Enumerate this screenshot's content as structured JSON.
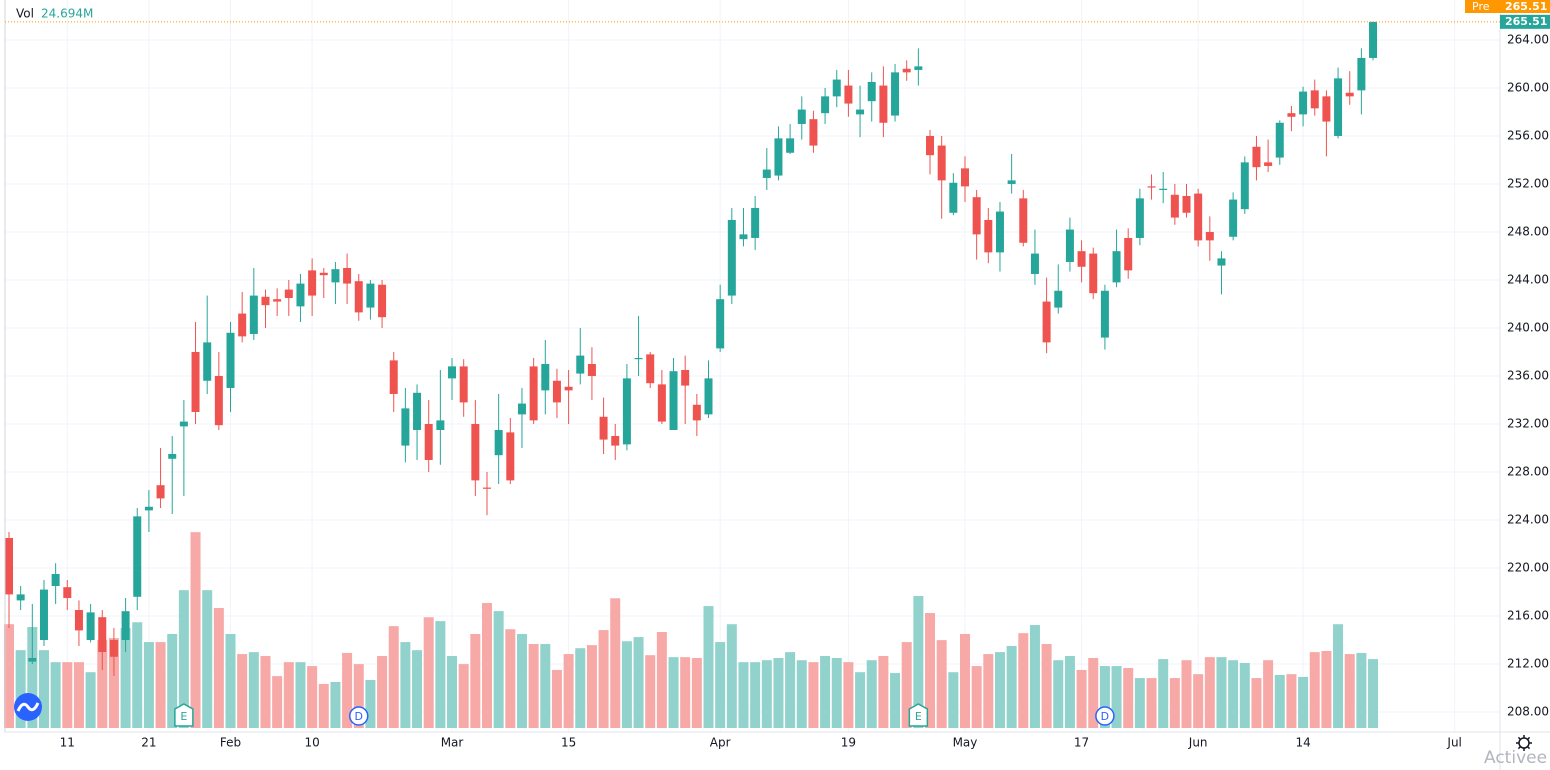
{
  "chart_data": {
    "type": "candlestick",
    "volume_legend": {
      "title": "Vol",
      "value": 24.694,
      "value_label": "24.694M"
    },
    "pre_market": {
      "label": "Pre",
      "value": 265.51
    },
    "last_price": 265.51,
    "watermark": "Activee",
    "open": [
      222.5,
      217.3,
      212.2,
      214,
      218.5,
      218.4,
      216.5,
      214,
      215.9,
      214,
      214,
      217.6,
      224.8,
      226.9,
      229.1,
      231.8,
      238,
      235.6,
      236,
      235,
      241.2,
      239.5,
      242.6,
      242.4,
      243.2,
      241.8,
      244.8,
      244.6,
      243.8,
      245,
      243.9,
      241.7,
      243.6,
      237.3,
      230.2,
      231.5,
      232,
      231.5,
      235.8,
      236.8,
      232,
      226.7,
      229.4,
      231.3,
      232.8,
      236.8,
      234.8,
      235.6,
      235.1,
      236.2,
      237,
      232.6,
      231,
      230.3,
      237.4,
      237.8,
      235.3,
      231.5,
      236.5,
      233.6,
      232.8,
      238.3,
      242.7,
      247.4,
      247.5,
      252.5,
      252.7,
      254.6,
      257,
      257.4,
      257.9,
      259.3,
      260.2,
      257.8,
      258.9,
      260.2,
      257.7,
      261.6,
      261.5,
      256,
      255.2,
      249.6,
      253.3,
      250.9,
      249,
      246.3,
      252,
      250.8,
      244.5,
      242.2,
      241.7,
      245.5,
      246.4,
      246.2,
      239.2,
      243.8,
      247.5,
      247.5,
      251.8,
      251.5,
      251.1,
      251,
      251.2,
      248,
      245.2,
      247.6,
      249.9,
      255.1,
      253.8,
      254.2,
      257.9,
      257.8,
      259.8,
      259.3,
      256,
      259.6,
      259.8,
      262.5
    ],
    "high": [
      223,
      218.5,
      217,
      219,
      220.4,
      219,
      217.3,
      217,
      216.5,
      215,
      217.5,
      225,
      226.5,
      230,
      231,
      234,
      240.5,
      242.7,
      238,
      240.5,
      243,
      245,
      243.2,
      243.3,
      244,
      244.5,
      245.8,
      245,
      245.5,
      246.2,
      244.5,
      244,
      244,
      238,
      235,
      235.3,
      234,
      236.5,
      237.5,
      237.4,
      234,
      228,
      234.5,
      232.5,
      235,
      237.5,
      239,
      236.6,
      236.5,
      240,
      238.4,
      234.2,
      232,
      237,
      241,
      238,
      236.5,
      237.5,
      237.7,
      234.5,
      237.3,
      243.6,
      250,
      250,
      251,
      255,
      256.8,
      257,
      259.3,
      258.1,
      260,
      261.5,
      261.5,
      260.2,
      261.3,
      261.8,
      262,
      262.3,
      263.3,
      256.5,
      256,
      252.9,
      254.3,
      251.5,
      250,
      250.5,
      254.5,
      251.5,
      248.2,
      244.2,
      245.3,
      249.2,
      247.3,
      246.7,
      243.6,
      248.2,
      248.3,
      251.6,
      252.8,
      253,
      252,
      252,
      251.6,
      249.3,
      246.4,
      251.3,
      254.3,
      256,
      255.7,
      257.3,
      258.5,
      260.1,
      260.7,
      259.8,
      261.7,
      261.4,
      263.3,
      265.51
    ],
    "low": [
      215,
      216.5,
      212,
      213.5,
      217,
      216.5,
      213.5,
      213.8,
      211.5,
      211,
      213,
      216.5,
      223,
      225,
      224.5,
      226,
      232,
      234.5,
      231.5,
      233,
      238.8,
      239,
      240,
      241,
      241,
      240.5,
      241,
      242.5,
      242,
      242,
      240.6,
      240.7,
      240,
      233,
      228.8,
      229,
      228,
      228.6,
      234,
      232.6,
      226,
      224.4,
      227,
      227,
      230,
      232,
      232.8,
      232.5,
      232,
      235.3,
      234,
      229.5,
      229,
      229.8,
      236,
      235,
      232,
      231.5,
      232,
      231,
      232.5,
      238,
      242,
      246.8,
      246.5,
      251.5,
      252.3,
      254.5,
      255.7,
      254.6,
      257,
      258.4,
      257.6,
      255.9,
      257.2,
      255.9,
      257.2,
      260.6,
      260.2,
      252.8,
      249.1,
      249.4,
      250.5,
      245.7,
      245.4,
      244.7,
      251.2,
      246.8,
      243.6,
      237.9,
      241.2,
      244.7,
      243.8,
      242.4,
      238.2,
      243.4,
      244.1,
      246.9,
      250.7,
      250.4,
      248.6,
      249.2,
      246.8,
      245.6,
      242.8,
      247.3,
      249.5,
      252.3,
      253,
      253.6,
      256.4,
      256.8,
      257.7,
      254.3,
      255.8,
      258.6,
      257.8,
      262.3
    ],
    "close": [
      217.8,
      217.8,
      212.5,
      218.2,
      219.5,
      217.5,
      214.8,
      216.3,
      213,
      212.6,
      216.4,
      224.3,
      225.1,
      225.8,
      229.5,
      232.2,
      233,
      238.8,
      231.9,
      239.6,
      239.3,
      242.7,
      241.9,
      242.2,
      242.5,
      243.7,
      242.7,
      244.4,
      244.9,
      243.7,
      241.3,
      243.7,
      240.9,
      234.5,
      233.3,
      234.6,
      229,
      232.3,
      236.8,
      233.8,
      227.3,
      226.6,
      231.5,
      227.3,
      233.7,
      232.3,
      237,
      233.8,
      234.8,
      237.7,
      236,
      230.7,
      230.2,
      235.8,
      237.5,
      235.4,
      232.2,
      236.4,
      235.2,
      232.3,
      235.8,
      242.4,
      249,
      247.8,
      250,
      253.2,
      255.8,
      255.8,
      258.2,
      255.2,
      259.3,
      260.7,
      258.7,
      258.2,
      260.5,
      257.1,
      261.3,
      261.3,
      261.8,
      254.4,
      252.3,
      252.1,
      251.8,
      247.8,
      246.3,
      249.7,
      252.3,
      247.1,
      246.2,
      238.8,
      243.1,
      248.2,
      245.1,
      242.9,
      243.1,
      246.4,
      244.8,
      250.8,
      251.7,
      251.6,
      249.2,
      249.6,
      247.3,
      247.3,
      245.8,
      250.7,
      253.8,
      253.4,
      253.5,
      257.1,
      257.6,
      259.7,
      258.3,
      257.2,
      260.8,
      259.3,
      262.5,
      265.51
    ],
    "volume": [
      37.2,
      27.9,
      36.2,
      27.9,
      23.6,
      23.6,
      23.6,
      20,
      31.5,
      32.2,
      35.8,
      37.9,
      30.8,
      30.8,
      33.7,
      49.4,
      70.2,
      49.4,
      43,
      33.7,
      26.5,
      27.2,
      25.8,
      18.6,
      23.6,
      23.6,
      22.2,
      15.8,
      16.5,
      26.9,
      22.9,
      17.2,
      25.8,
      36.5,
      30.8,
      27.9,
      39.7,
      38.3,
      25.8,
      22.9,
      33.7,
      44.8,
      41.9,
      35.4,
      33.7,
      30.1,
      30.1,
      20.8,
      26.5,
      28.6,
      29.7,
      35.1,
      46.5,
      31.1,
      32.6,
      26.1,
      34.4,
      25.4,
      25.4,
      25.1,
      43.7,
      30.8,
      37.2,
      23.6,
      23.6,
      24.3,
      25.1,
      27.2,
      24.3,
      23.6,
      25.8,
      25.1,
      23.6,
      20,
      24.3,
      25.8,
      19.7,
      30.8,
      47.3,
      41.2,
      31.5,
      20,
      33.7,
      22.2,
      26.5,
      27.2,
      29.4,
      34,
      36.9,
      30.1,
      24.3,
      25.8,
      20.8,
      25.1,
      22.2,
      22.2,
      21.5,
      17.9,
      17.9,
      24.7,
      17.9,
      24.3,
      19.3,
      25.4,
      25.4,
      24.3,
      23.3,
      17.9,
      24.3,
      19,
      19.3,
      18.3,
      27.2,
      27.6,
      37.2,
      26.5,
      26.9,
      24.694
    ],
    "up_color": "#26a69a",
    "down_color": "#ef5350",
    "up_volume_color": "#92d2cc",
    "down_volume_color": "#f7a9a7",
    "events": [
      {
        "x": 15,
        "label": "E"
      },
      {
        "x": 30,
        "label": "D"
      },
      {
        "x": 78,
        "label": "E"
      },
      {
        "x": 94,
        "label": "D"
      }
    ],
    "xlim": [
      -0.343,
      127.89
    ],
    "xticks": [
      {
        "value": 5,
        "label": "11"
      },
      {
        "value": 12,
        "label": "21"
      },
      {
        "value": 19,
        "label": "Feb"
      },
      {
        "value": 26,
        "label": "10"
      },
      {
        "value": 38,
        "label": "Mar"
      },
      {
        "value": 48,
        "label": "15"
      },
      {
        "value": 61,
        "label": "Apr"
      },
      {
        "value": 72,
        "label": "19"
      },
      {
        "value": 82,
        "label": "May"
      },
      {
        "value": 92,
        "label": "17"
      },
      {
        "value": 102,
        "label": "Jun"
      },
      {
        "value": 111,
        "label": "14"
      },
      {
        "value": 124,
        "label": "Jul"
      }
    ],
    "ylim": [
      206.5,
      267.33
    ],
    "yticks": [
      {
        "value": 208,
        "label": "208.00"
      },
      {
        "value": 212,
        "label": "212.00"
      },
      {
        "value": 216,
        "label": "216.00"
      },
      {
        "value": 220,
        "label": "220.00"
      },
      {
        "value": 224,
        "label": "224.00"
      },
      {
        "value": 228,
        "label": "228.00"
      },
      {
        "value": 232,
        "label": "232.00"
      },
      {
        "value": 236,
        "label": "236.00"
      },
      {
        "value": 240,
        "label": "240.00"
      },
      {
        "value": 244,
        "label": "244.00"
      },
      {
        "value": 248,
        "label": "248.00"
      },
      {
        "value": 252,
        "label": "252.00"
      },
      {
        "value": 256,
        "label": "256.00"
      },
      {
        "value": 260,
        "label": "260.00"
      },
      {
        "value": 264,
        "label": "264.00"
      }
    ],
    "y2lim": [
      0,
      100
    ],
    "grid": true
  }
}
